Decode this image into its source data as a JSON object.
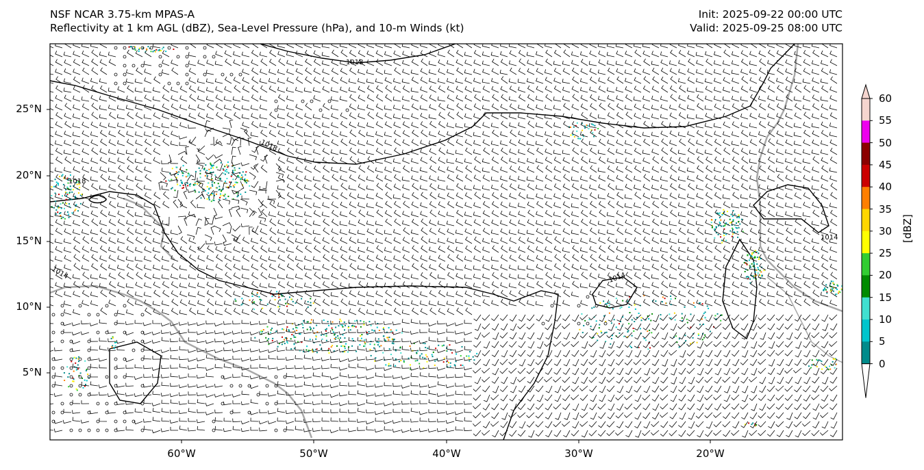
{
  "header": {
    "model_title": "NSF NCAR 3.75-km MPAS-A",
    "fields_title": "Reflectivity at 1 km AGL (dBZ), Sea-Level Pressure (hPa), and 10-m Winds (kt)",
    "init": "Init: 2025-09-22 00:00 UTC",
    "valid": "Valid: 2025-09-25 08:00 UTC"
  },
  "map": {
    "lat_ticks": [
      "25°N",
      "20°N",
      "15°N",
      "10°N",
      "5°N"
    ],
    "lon_ticks": [
      "60°W",
      "50°W",
      "40°W",
      "30°W",
      "20°W"
    ],
    "isobar_labels": [
      "1018",
      "1018",
      "1018",
      "1014",
      "1014",
      "1014"
    ],
    "colors": {
      "isobar": "#000000",
      "coastline": "#a8a8a8",
      "barb": "#000000"
    }
  },
  "colorbar": {
    "label": "[dBZ]",
    "ticks": [
      "60",
      "55",
      "50",
      "45",
      "40",
      "35",
      "30",
      "25",
      "20",
      "15",
      "10",
      "5",
      "0"
    ],
    "colors": [
      "#f5d5cf",
      "#ee00ee",
      "#8b0000",
      "#cc0000",
      "#ff7f00",
      "#ffd700",
      "#ffff00",
      "#32cd32",
      "#008b00",
      "#40e0d0",
      "#00c5cd",
      "#008b8b",
      "#ffffff"
    ]
  }
}
